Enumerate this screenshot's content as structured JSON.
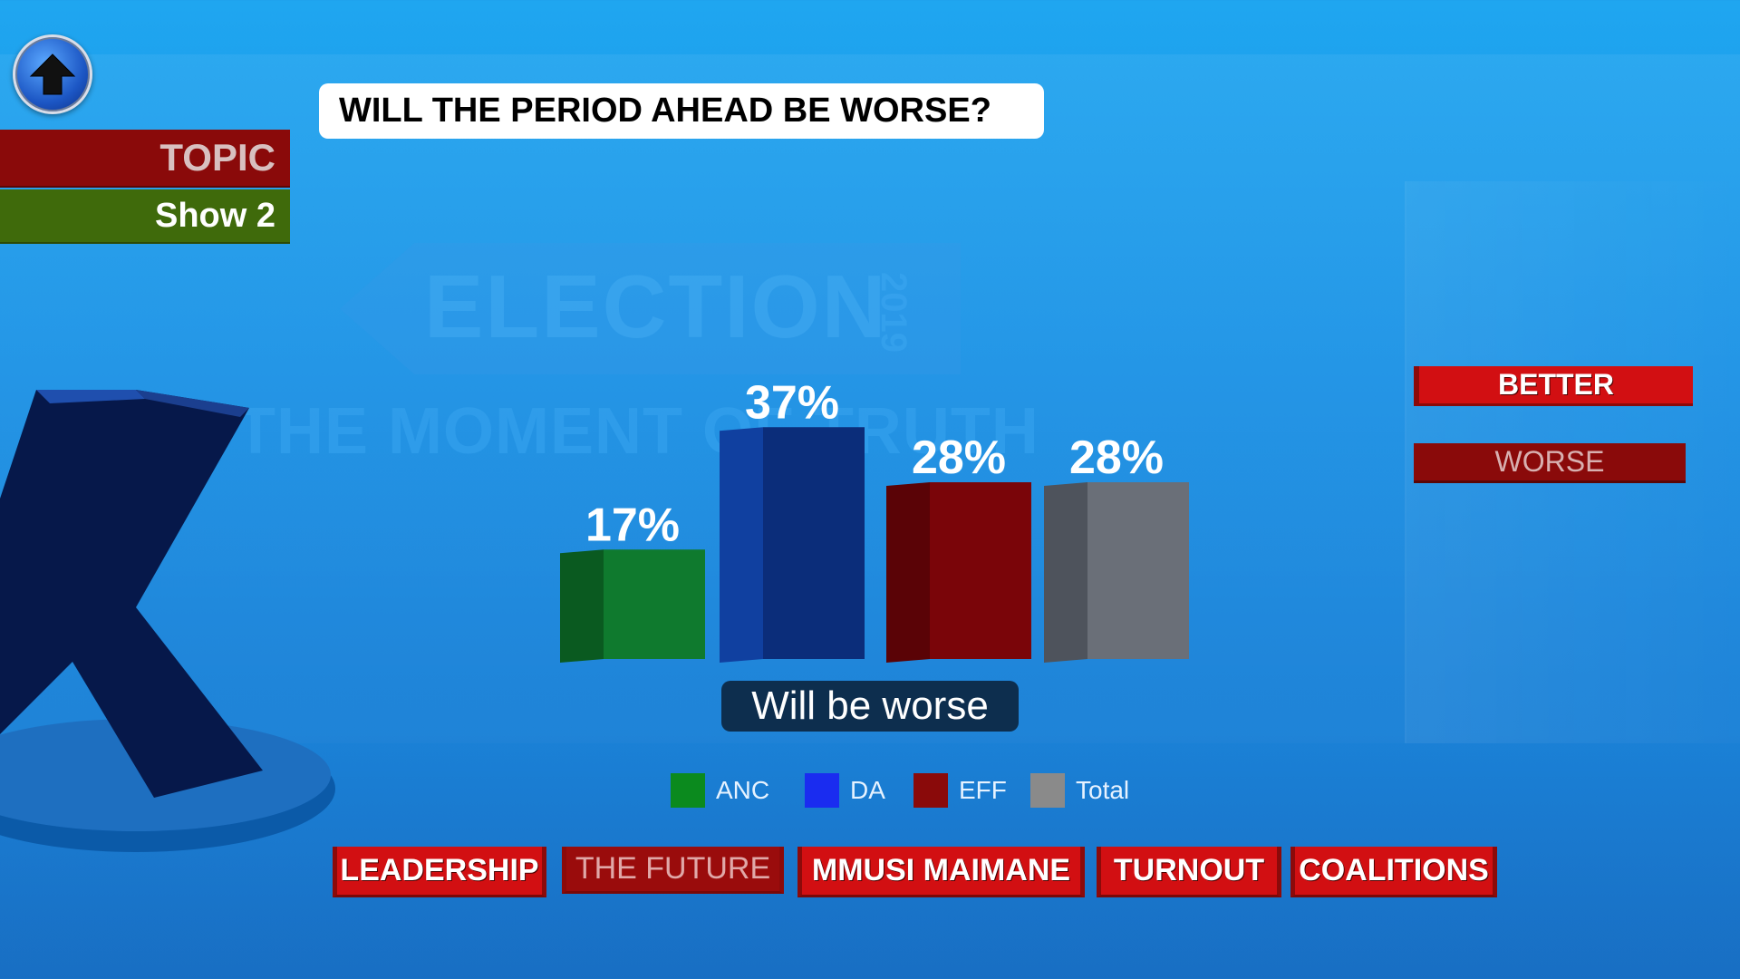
{
  "title": "WILL THE PERIOD AHEAD BE WORSE?",
  "sidebar": {
    "topic_label": "TOPIC",
    "show_label": "Show 2"
  },
  "watermark": {
    "main": "ELECTION",
    "year": "2019",
    "tagline": "THE MOMENT OF TRUTH"
  },
  "caption": "Will be worse",
  "options": {
    "better": "BETTER",
    "worse": "WORSE"
  },
  "nav": {
    "leadership": "LEADERSHIP",
    "the_future": "THE FUTURE",
    "mmusi_maimane": "MMUSI MAIMANE",
    "turnout": "TURNOUT",
    "coalitions": "COALITIONS"
  },
  "icons": {
    "home": "up-arrow-icon",
    "logo": "x-logo-icon"
  },
  "chart_data": {
    "type": "bar",
    "categories": [
      "ANC",
      "DA",
      "EFF",
      "Total"
    ],
    "values": [
      17,
      37,
      28,
      28
    ],
    "value_labels": [
      "17%",
      "37%",
      "28%",
      "28%"
    ],
    "colors": [
      "#0f7a2e",
      "#0b2d7a",
      "#7a0509",
      "#6a6f78"
    ],
    "side_colors": [
      "#0a5a20",
      "#1040a0",
      "#5a0306",
      "#4e535c"
    ],
    "legend": [
      {
        "name": "ANC",
        "color": "#0b8a1e"
      },
      {
        "name": "DA",
        "color": "#1a2cf0"
      },
      {
        "name": "EFF",
        "color": "#8a0a0a"
      },
      {
        "name": "Total",
        "color": "#8a8a8a"
      }
    ],
    "ylim": [
      0,
      40
    ],
    "legend_position": "bottom"
  }
}
